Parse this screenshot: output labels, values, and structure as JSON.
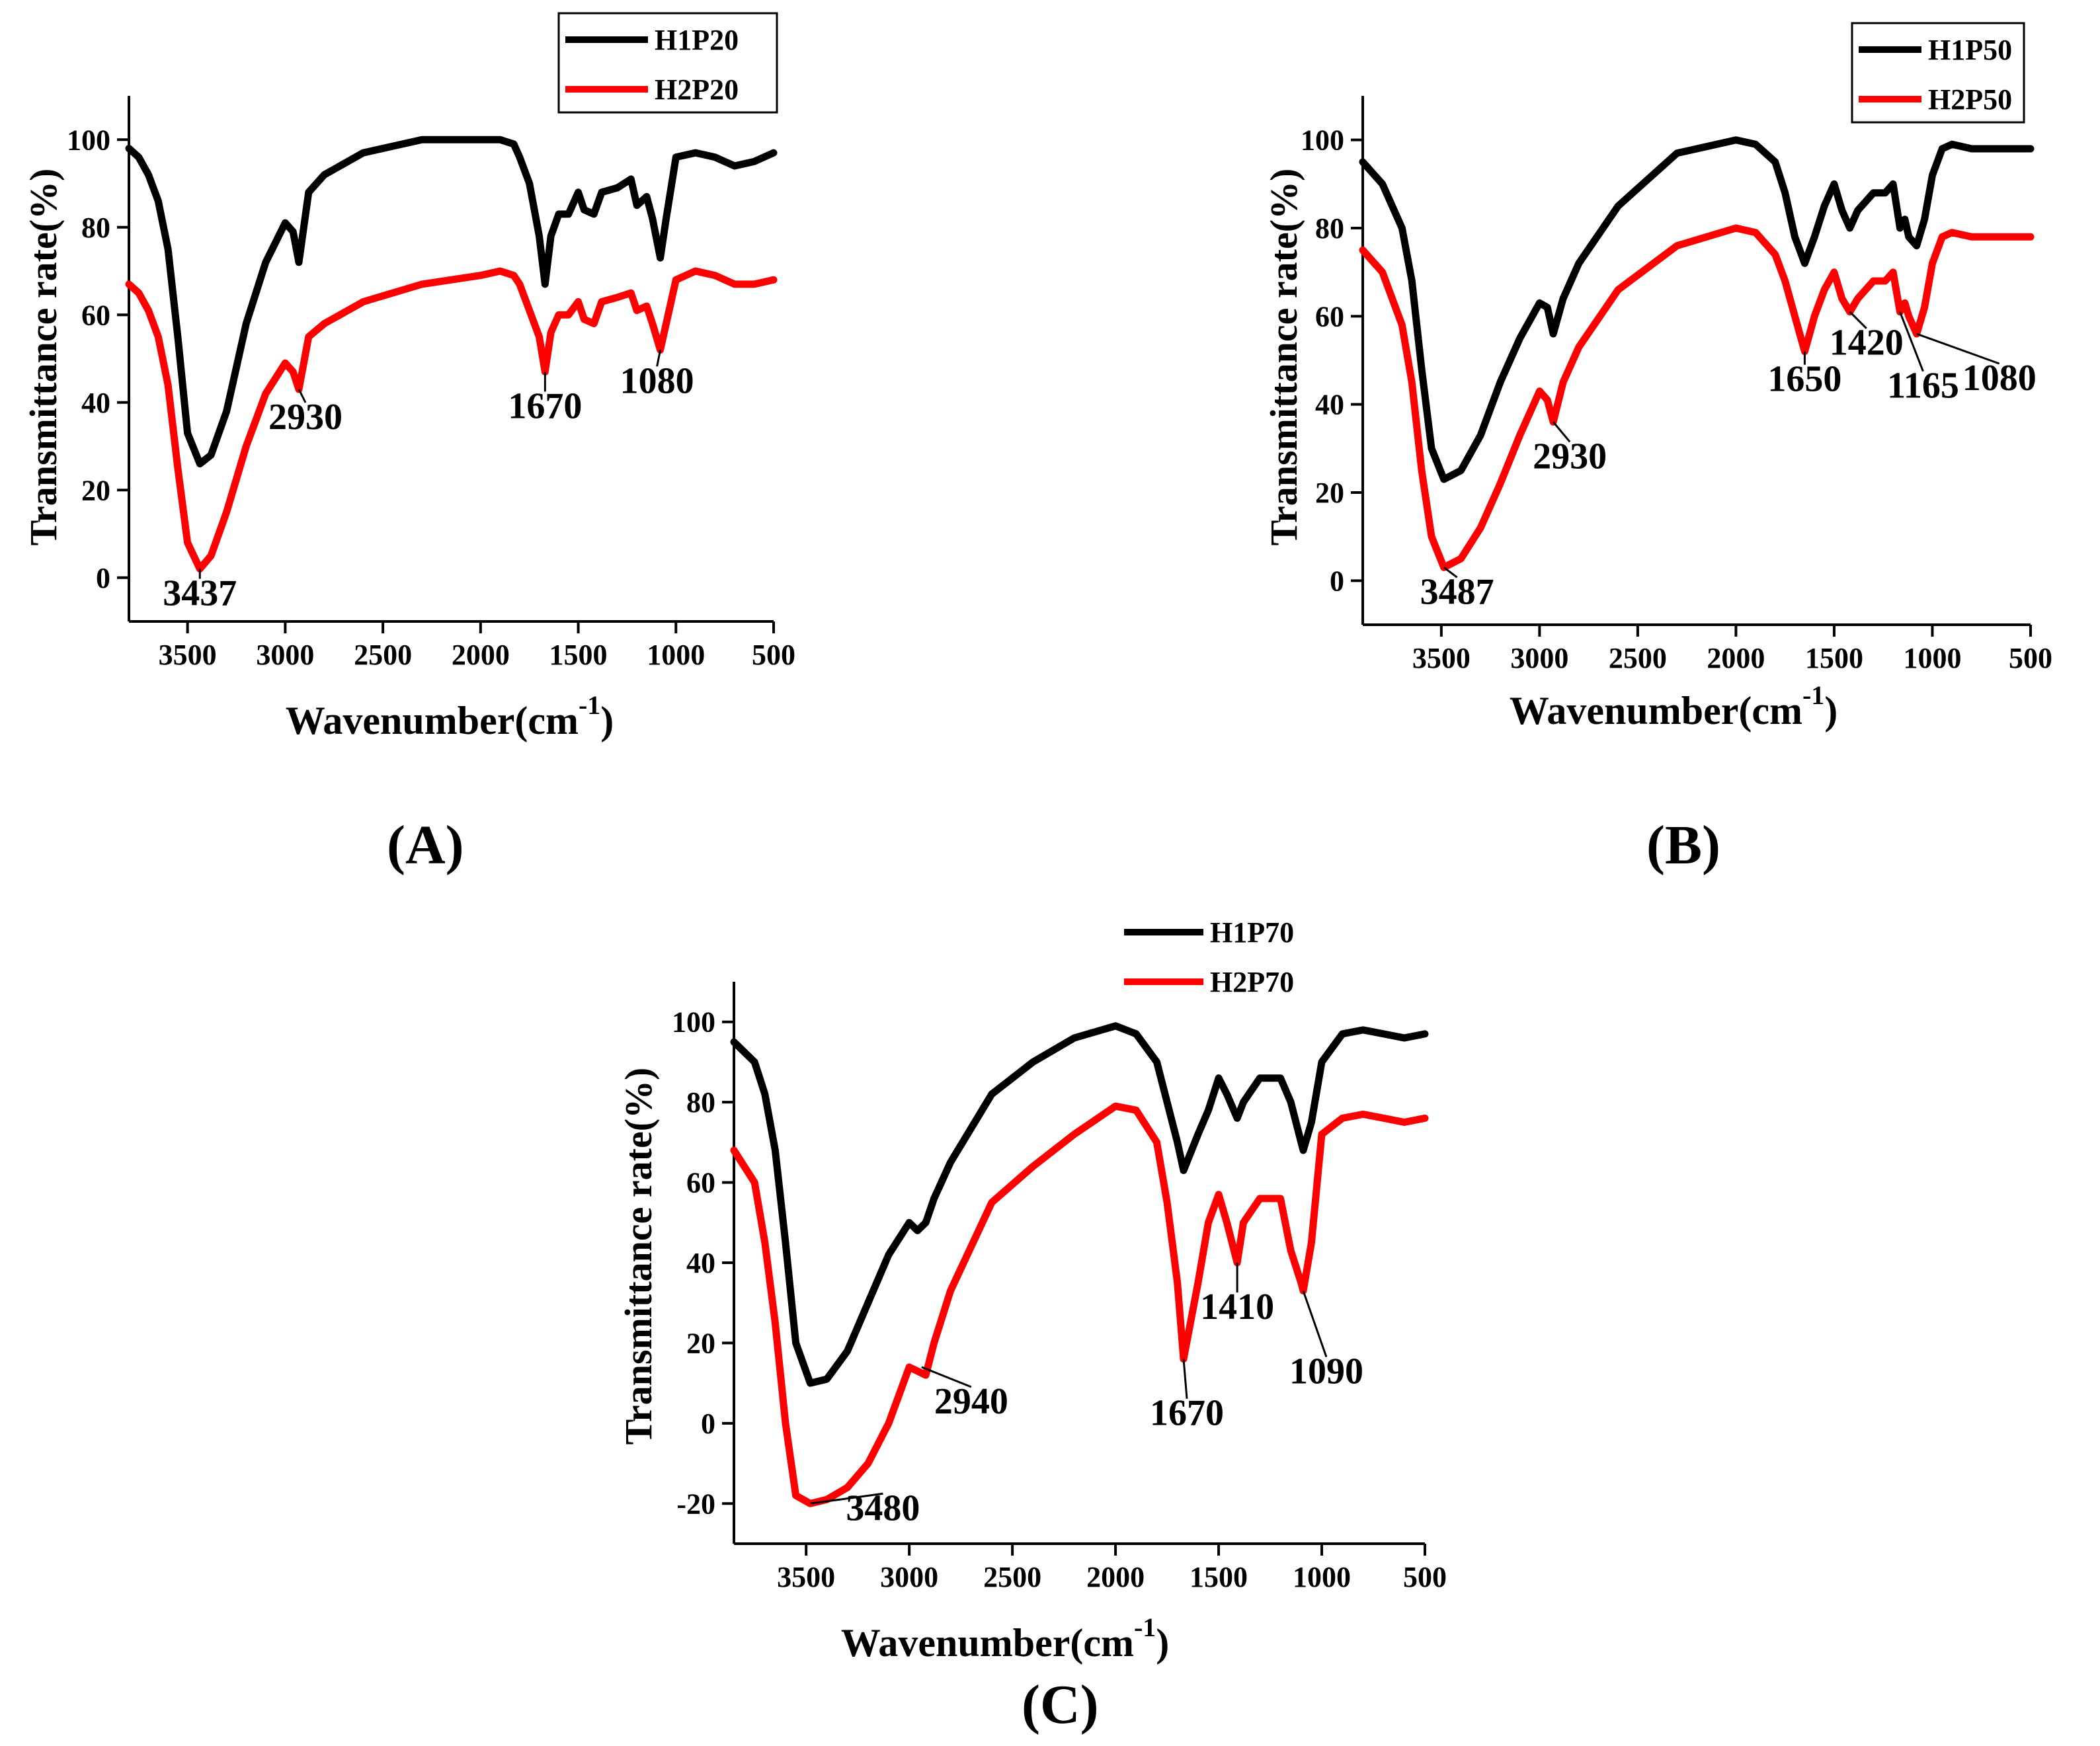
{
  "chart_data": [
    {
      "id": "A",
      "panel_label": "(A)",
      "type": "line",
      "title": "",
      "xlabel": "Wavenumber(cm",
      "xlabel_sup": "-1",
      "xlabel_close": ")",
      "ylabel": "Transmittance rate(%)",
      "xlim": [
        3800,
        500
      ],
      "ylim": [
        -10,
        110
      ],
      "xticks": [
        3500,
        3000,
        2500,
        2000,
        1500,
        1000,
        500
      ],
      "yticks": [
        0,
        20,
        40,
        60,
        80,
        100
      ],
      "legend_position": "top-right",
      "series": [
        {
          "name": "H1P20",
          "color": "#000000",
          "x": [
            3800,
            3750,
            3700,
            3650,
            3600,
            3550,
            3500,
            3437,
            3380,
            3300,
            3200,
            3100,
            3000,
            2960,
            2930,
            2880,
            2800,
            2600,
            2300,
            2000,
            1900,
            1830,
            1800,
            1750,
            1700,
            1670,
            1640,
            1600,
            1550,
            1500,
            1470,
            1420,
            1380,
            1300,
            1230,
            1200,
            1150,
            1120,
            1080,
            1050,
            1000,
            900,
            800,
            700,
            600,
            500
          ],
          "y": [
            98,
            96,
            92,
            86,
            75,
            55,
            33,
            26,
            28,
            38,
            58,
            72,
            81,
            79,
            72,
            88,
            92,
            97,
            100,
            100,
            100,
            99,
            96,
            90,
            78,
            67,
            78,
            83,
            83,
            88,
            84,
            83,
            88,
            89,
            91,
            85,
            87,
            82,
            73,
            82,
            96,
            97,
            96,
            94,
            95,
            97
          ]
        },
        {
          "name": "H2P20",
          "color": "#ff0000",
          "x": [
            3800,
            3750,
            3700,
            3650,
            3600,
            3550,
            3500,
            3437,
            3380,
            3300,
            3200,
            3100,
            3000,
            2960,
            2930,
            2880,
            2800,
            2600,
            2300,
            2000,
            1900,
            1830,
            1800,
            1750,
            1700,
            1670,
            1640,
            1600,
            1550,
            1500,
            1470,
            1420,
            1380,
            1300,
            1230,
            1200,
            1150,
            1120,
            1080,
            1050,
            1000,
            900,
            800,
            700,
            600,
            500
          ],
          "y": [
            67,
            65,
            61,
            55,
            44,
            25,
            8,
            2,
            5,
            15,
            30,
            42,
            49,
            47,
            43,
            55,
            58,
            63,
            67,
            69,
            70,
            69,
            67,
            61,
            55,
            47,
            56,
            60,
            60,
            63,
            59,
            58,
            63,
            64,
            65,
            61,
            62,
            58,
            52,
            58,
            68,
            70,
            69,
            67,
            67,
            68
          ]
        }
      ],
      "annotations": [
        {
          "text": "3437",
          "x": 3437,
          "y": 2
        },
        {
          "text": "2930",
          "x": 2930,
          "y": 43
        },
        {
          "text": "1670",
          "x": 1670,
          "y": 47
        },
        {
          "text": "1080",
          "x": 1080,
          "y": 52
        }
      ]
    },
    {
      "id": "B",
      "panel_label": "(B)",
      "type": "line",
      "title": "",
      "xlabel": "Wavenumber(cm",
      "xlabel_sup": "-1",
      "xlabel_close": ")",
      "ylabel": "Transmittance rate(%)",
      "xlim": [
        3900,
        500
      ],
      "ylim": [
        -10,
        110
      ],
      "xticks": [
        3500,
        3000,
        2500,
        2000,
        1500,
        1000,
        500
      ],
      "yticks": [
        0,
        20,
        40,
        60,
        80,
        100
      ],
      "legend_position": "top-right",
      "series": [
        {
          "name": "H1P50",
          "color": "#000000",
          "x": [
            3900,
            3800,
            3700,
            3650,
            3600,
            3550,
            3487,
            3400,
            3300,
            3200,
            3100,
            3000,
            2960,
            2930,
            2880,
            2800,
            2600,
            2300,
            2000,
            1900,
            1800,
            1750,
            1700,
            1650,
            1600,
            1550,
            1500,
            1460,
            1420,
            1380,
            1300,
            1240,
            1200,
            1165,
            1140,
            1120,
            1080,
            1040,
            1000,
            950,
            900,
            800,
            700,
            600,
            500
          ],
          "y": [
            95,
            90,
            80,
            68,
            48,
            30,
            23,
            25,
            33,
            45,
            55,
            63,
            62,
            56,
            64,
            72,
            85,
            97,
            100,
            99,
            95,
            88,
            78,
            72,
            78,
            85,
            90,
            84,
            80,
            84,
            88,
            88,
            90,
            80,
            82,
            78,
            76,
            82,
            92,
            98,
            99,
            98,
            98,
            98,
            98
          ]
        },
        {
          "name": "H2P50",
          "color": "#ff0000",
          "x": [
            3900,
            3800,
            3700,
            3650,
            3600,
            3550,
            3487,
            3400,
            3300,
            3200,
            3100,
            3000,
            2960,
            2930,
            2880,
            2800,
            2600,
            2300,
            2000,
            1900,
            1800,
            1750,
            1700,
            1650,
            1600,
            1550,
            1500,
            1460,
            1420,
            1380,
            1300,
            1240,
            1200,
            1165,
            1140,
            1120,
            1080,
            1040,
            1000,
            950,
            900,
            800,
            700,
            600,
            500
          ],
          "y": [
            75,
            70,
            58,
            45,
            25,
            10,
            3,
            5,
            12,
            22,
            33,
            43,
            41,
            36,
            45,
            53,
            66,
            76,
            80,
            79,
            74,
            68,
            60,
            52,
            60,
            66,
            70,
            64,
            61,
            64,
            68,
            68,
            70,
            61,
            63,
            60,
            56,
            62,
            72,
            78,
            79,
            78,
            78,
            78,
            78
          ]
        }
      ],
      "annotations": [
        {
          "text": "3487",
          "x": 3487,
          "y": 3
        },
        {
          "text": "2930",
          "x": 2930,
          "y": 36
        },
        {
          "text": "1650",
          "x": 1650,
          "y": 52
        },
        {
          "text": "1420",
          "x": 1420,
          "y": 61
        },
        {
          "text": "1165",
          "x": 1165,
          "y": 61
        },
        {
          "text": "1080",
          "x": 1080,
          "y": 56
        }
      ]
    },
    {
      "id": "C",
      "panel_label": "(C)",
      "type": "line",
      "title": "",
      "xlabel": "Wavenumber(cm",
      "xlabel_sup": "-1",
      "xlabel_close": ")",
      "ylabel": "Transmittance rate(%)",
      "xlim": [
        3850,
        500
      ],
      "ylim": [
        -30,
        110
      ],
      "xticks": [
        3500,
        3000,
        2500,
        2000,
        1500,
        1000,
        500
      ],
      "yticks": [
        -20,
        0,
        20,
        40,
        60,
        80,
        100
      ],
      "legend_position": "top-center",
      "series": [
        {
          "name": "H1P70",
          "color": "#000000",
          "x": [
            3850,
            3750,
            3700,
            3650,
            3600,
            3550,
            3480,
            3400,
            3300,
            3200,
            3100,
            3000,
            2960,
            2920,
            2880,
            2800,
            2600,
            2400,
            2200,
            2000,
            1900,
            1800,
            1750,
            1700,
            1670,
            1600,
            1550,
            1500,
            1460,
            1410,
            1380,
            1300,
            1200,
            1150,
            1100,
            1090,
            1050,
            1000,
            900,
            800,
            700,
            600,
            500
          ],
          "y": [
            95,
            90,
            82,
            68,
            45,
            20,
            10,
            11,
            18,
            30,
            42,
            50,
            48,
            50,
            56,
            65,
            82,
            90,
            96,
            99,
            97,
            90,
            80,
            70,
            63,
            72,
            78,
            86,
            82,
            76,
            80,
            86,
            86,
            80,
            70,
            68,
            75,
            90,
            97,
            98,
            97,
            96,
            97
          ]
        },
        {
          "name": "H2P70",
          "color": "#ff0000",
          "x": [
            3850,
            3750,
            3700,
            3650,
            3600,
            3550,
            3480,
            3400,
            3300,
            3200,
            3100,
            3000,
            2960,
            2920,
            2880,
            2800,
            2600,
            2400,
            2200,
            2000,
            1900,
            1800,
            1750,
            1700,
            1670,
            1600,
            1550,
            1500,
            1460,
            1410,
            1380,
            1300,
            1200,
            1150,
            1100,
            1090,
            1050,
            1000,
            900,
            800,
            700,
            600,
            500
          ],
          "y": [
            68,
            60,
            45,
            25,
            0,
            -18,
            -20,
            -19,
            -16,
            -10,
            0,
            14,
            13,
            12,
            20,
            33,
            55,
            64,
            72,
            79,
            78,
            70,
            55,
            35,
            16,
            35,
            50,
            57,
            50,
            40,
            50,
            56,
            56,
            43,
            35,
            33,
            45,
            72,
            76,
            77,
            76,
            75,
            76
          ]
        }
      ],
      "annotations": [
        {
          "text": "3480",
          "x": 3480,
          "y": -20
        },
        {
          "text": "2940",
          "x": 2940,
          "y": 14
        },
        {
          "text": "1670",
          "x": 1670,
          "y": 16
        },
        {
          "text": "1410",
          "x": 1410,
          "y": 40
        },
        {
          "text": "1090",
          "x": 1090,
          "y": 33
        }
      ]
    }
  ]
}
